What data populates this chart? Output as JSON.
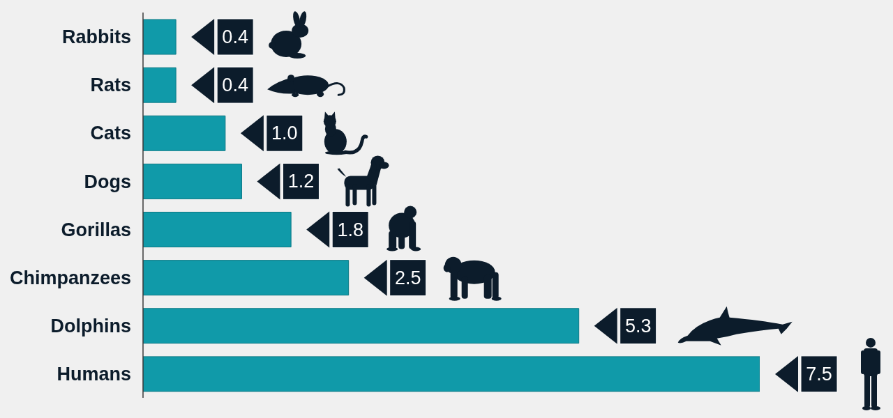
{
  "chart_data": {
    "type": "bar",
    "orientation": "horizontal",
    "categories": [
      "Rabbits",
      "Rats",
      "Cats",
      "Dogs",
      "Gorillas",
      "Chimpanzees",
      "Dolphins",
      "Humans"
    ],
    "values": [
      0.4,
      0.4,
      1.0,
      1.2,
      1.8,
      2.5,
      5.3,
      7.5
    ],
    "color": "#109aa9",
    "value_labels": [
      "0.4",
      "0.4",
      "1.0",
      "1.2",
      "1.8",
      "2.5",
      "5.3",
      "7.5"
    ],
    "tick_labels": "y"
  }
}
